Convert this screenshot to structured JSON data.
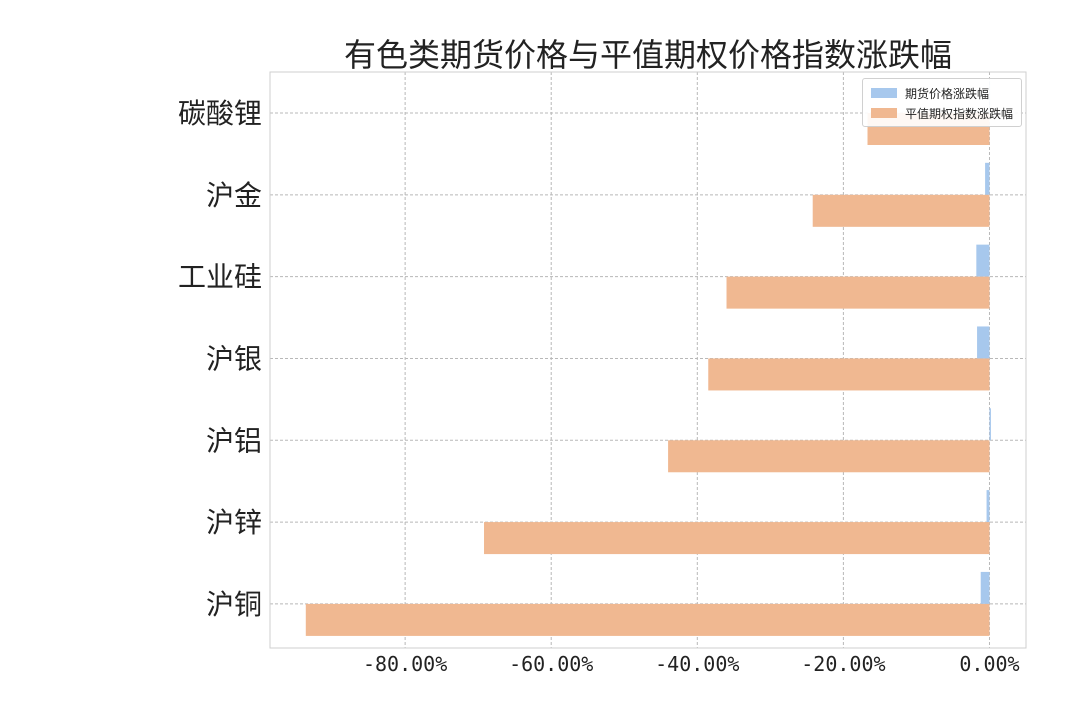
{
  "chart_data": {
    "type": "bar",
    "orientation": "horizontal",
    "title": "有色类期货价格与平值期权价格指数涨跌幅",
    "categories": [
      "碳酸锂",
      "沪金",
      "工业硅",
      "沪银",
      "沪铝",
      "沪锌",
      "沪铜"
    ],
    "series": [
      {
        "name": "期货价格涨跌幅",
        "color": "#a7c8ed",
        "values": [
          0.0,
          -0.6,
          -1.8,
          -1.7,
          0.2,
          -0.4,
          -1.2
        ]
      },
      {
        "name": "平值期权指数涨跌幅",
        "color": "#f0b891",
        "values": [
          -16.7,
          -24.2,
          -36.0,
          -38.5,
          -44.0,
          -69.2,
          -93.6
        ]
      }
    ],
    "xlim": [
      -98.5,
      5
    ],
    "xticks": [
      -80,
      -60,
      -40,
      -20,
      0
    ],
    "xtick_labels": [
      "-80.00%",
      "-60.00%",
      "-40.00%",
      "-20.00%",
      "0.00%"
    ],
    "grid": true,
    "legend_position": "top-right"
  }
}
